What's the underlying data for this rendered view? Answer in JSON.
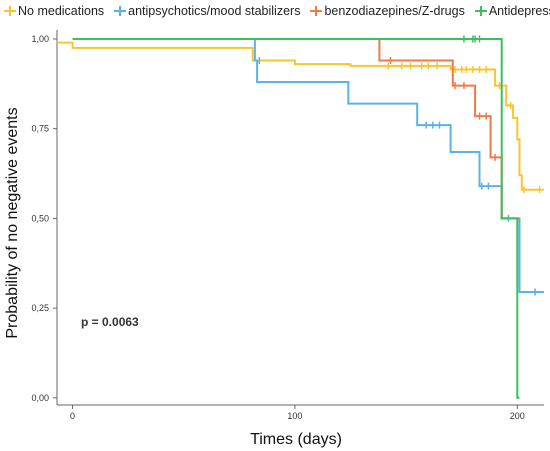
{
  "chart_data": {
    "type": "line",
    "subtype": "kaplan-meier step",
    "xlabel": "Times (days)",
    "ylabel": "Probability of no negative events",
    "xlim": [
      -7,
      212
    ],
    "ylim": [
      -0.02,
      1.025
    ],
    "x_ticks": [
      {
        "value": 0,
        "label": "0"
      },
      {
        "value": 100,
        "label": "100"
      },
      {
        "value": 200,
        "label": "200"
      }
    ],
    "y_ticks": [
      {
        "value": 0,
        "label": "0,00"
      },
      {
        "value": 0.25,
        "label": "0,25"
      },
      {
        "value": 0.5,
        "label": "0,50"
      },
      {
        "value": 0.75,
        "label": "0,75"
      },
      {
        "value": 1,
        "label": "1,00"
      }
    ],
    "grid": false,
    "legend_position": "top",
    "annotation": "p = 0.0063",
    "series": [
      {
        "name": "No medications",
        "color": "#F7C531",
        "steps": [
          [
            -7,
            0.99
          ],
          [
            0,
            0.975
          ],
          [
            81,
            0.94
          ],
          [
            100,
            0.93
          ],
          [
            125,
            0.925
          ],
          [
            170,
            0.915
          ],
          [
            190,
            0.87
          ],
          [
            195,
            0.815
          ],
          [
            198,
            0.78
          ],
          [
            200,
            0.72
          ],
          [
            201,
            0.62
          ],
          [
            202,
            0.58
          ],
          [
            212,
            0.58
          ]
        ],
        "censored": [
          [
            142,
            0.925
          ],
          [
            148,
            0.925
          ],
          [
            152,
            0.925
          ],
          [
            157,
            0.925
          ],
          [
            160,
            0.925
          ],
          [
            164,
            0.925
          ],
          [
            172,
            0.915
          ],
          [
            175,
            0.915
          ],
          [
            177,
            0.915
          ],
          [
            180,
            0.915
          ],
          [
            183,
            0.915
          ],
          [
            186,
            0.915
          ],
          [
            192,
            0.87
          ],
          [
            197,
            0.815
          ],
          [
            203,
            0.58
          ],
          [
            210,
            0.58
          ]
        ]
      },
      {
        "name": "antipsychotics/mood stabilizers",
        "color": "#5BB3E5",
        "steps": [
          [
            0,
            1.0
          ],
          [
            82,
            1.0
          ],
          [
            82,
            0.94
          ],
          [
            83,
            0.88
          ],
          [
            124,
            0.82
          ],
          [
            155,
            0.76
          ],
          [
            170,
            0.685
          ],
          [
            183,
            0.59
          ],
          [
            192,
            0.59
          ],
          [
            193,
            0.5
          ],
          [
            200,
            0.5
          ],
          [
            201,
            0.295
          ],
          [
            212,
            0.295
          ]
        ],
        "censored": [
          [
            84,
            0.94
          ],
          [
            159,
            0.76
          ],
          [
            162,
            0.76
          ],
          [
            165,
            0.76
          ],
          [
            184,
            0.59
          ],
          [
            187,
            0.59
          ],
          [
            196,
            0.5
          ],
          [
            208,
            0.295
          ]
        ]
      },
      {
        "name": "benzodiazepines/Z-drugs",
        "color": "#EE7A47",
        "steps": [
          [
            0,
            1.0
          ],
          [
            138,
            1.0
          ],
          [
            138,
            0.94
          ],
          [
            171,
            0.87
          ],
          [
            181,
            0.785
          ],
          [
            188,
            0.67
          ],
          [
            193,
            0.5
          ],
          [
            201,
            0.5
          ]
        ],
        "censored": [
          [
            143,
            0.94
          ],
          [
            172,
            0.87
          ],
          [
            176,
            0.87
          ],
          [
            183,
            0.785
          ],
          [
            186,
            0.785
          ],
          [
            190,
            0.67
          ]
        ]
      },
      {
        "name": "Antidepressant",
        "color": "#3CBF5F",
        "steps": [
          [
            0,
            1.0
          ],
          [
            193,
            1.0
          ],
          [
            193,
            0.5
          ],
          [
            200,
            0.5
          ],
          [
            200,
            0.0
          ],
          [
            201,
            0.0
          ]
        ],
        "censored": [
          [
            176,
            1.0
          ],
          [
            180,
            1.0
          ],
          [
            181,
            1.0
          ],
          [
            183,
            1.0
          ]
        ]
      }
    ]
  }
}
